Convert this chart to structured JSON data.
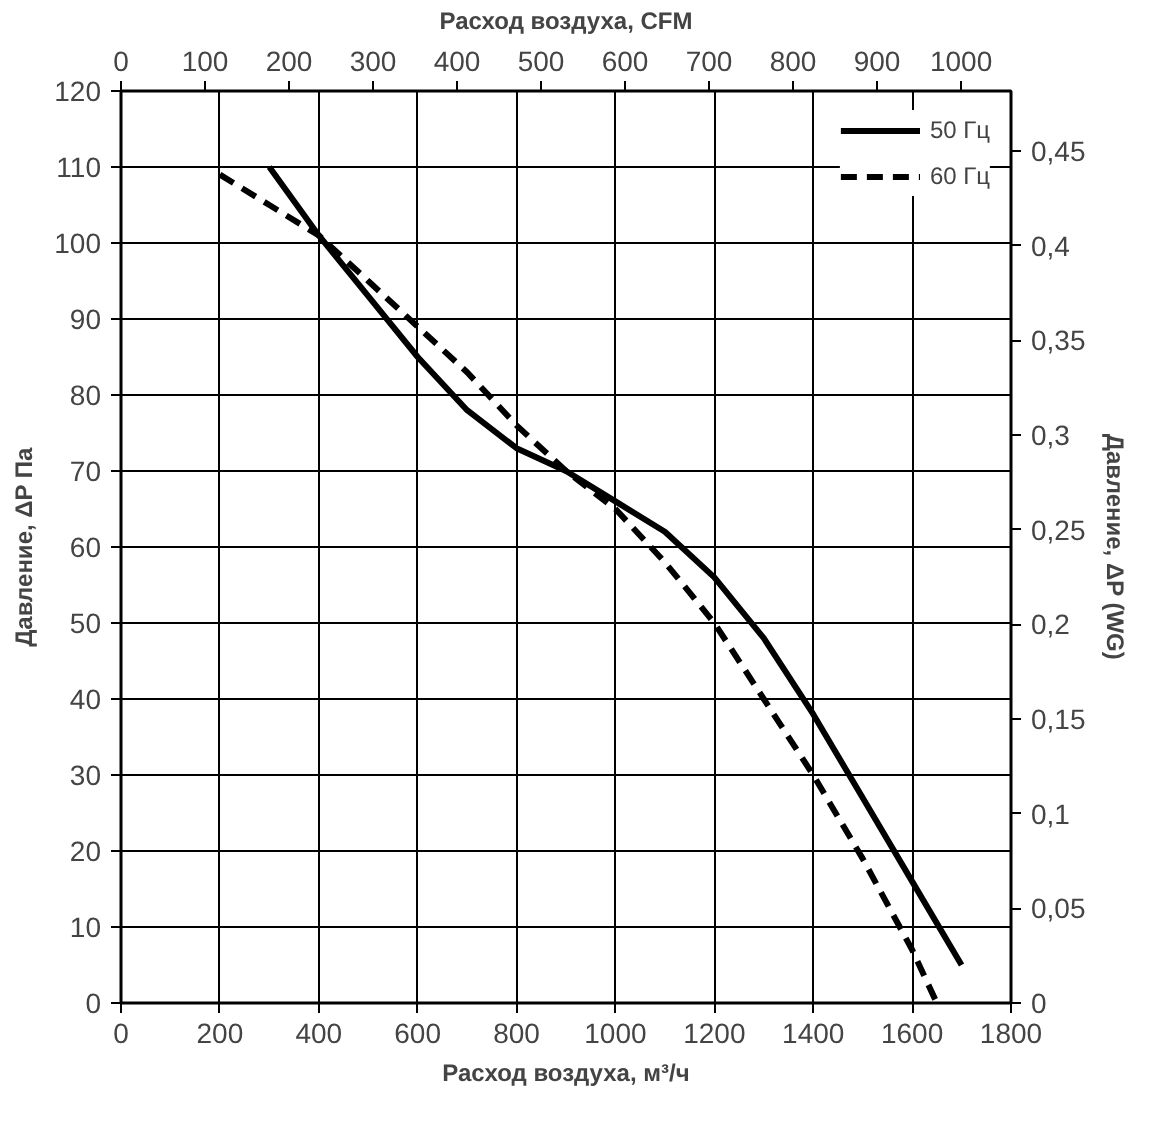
{
  "chart_data": {
    "type": "line",
    "xlabel": "Расход воздуха, м³/ч",
    "ylabel": "Давление, ΔP Па",
    "y2label": "Давление, ΔP (WG)",
    "x2label": "Расход воздуха, CFM",
    "xlim": [
      0,
      1800
    ],
    "xticks": [
      0,
      200,
      400,
      600,
      800,
      1000,
      1200,
      1400,
      1600,
      1800
    ],
    "ylim": [
      0,
      120
    ],
    "yticks": [
      0,
      10,
      20,
      30,
      40,
      50,
      60,
      70,
      80,
      90,
      100,
      110,
      120
    ],
    "y2lim": [
      0,
      0.4817
    ],
    "y2ticks": [
      0,
      {
        "value": 0.05,
        "label": "0,05"
      },
      {
        "value": 0.1,
        "label": "0,1"
      },
      {
        "value": 0.15,
        "label": "0,15"
      },
      {
        "value": 0.2,
        "label": "0,2"
      },
      {
        "value": 0.25,
        "label": "0,25"
      },
      {
        "value": 0.3,
        "label": "0,3"
      },
      {
        "value": 0.35,
        "label": "0,35"
      },
      {
        "value": 0.4,
        "label": "0,4"
      },
      {
        "value": 0.45,
        "label": "0,45"
      }
    ],
    "x2lim": [
      0,
      1059.4
    ],
    "x2ticks": [
      0,
      100,
      200,
      300,
      400,
      500,
      600,
      700,
      800,
      900,
      1000
    ],
    "grid": true,
    "legend": "top right",
    "series": [
      {
        "name": "50 Гц",
        "color": "#000000",
        "line_style": "solid",
        "x": [
          300,
          400,
          500,
          600,
          700,
          800,
          900,
          1000,
          1100,
          1200,
          1300,
          1400,
          1500,
          1600,
          1700
        ],
        "values": [
          110,
          101,
          93,
          85,
          78,
          73,
          70,
          66,
          62,
          56,
          48,
          38,
          27,
          16,
          5
        ]
      },
      {
        "name": "60 Гц",
        "color": "#000000",
        "line_style": "dashed",
        "x": [
          200,
          300,
          400,
          500,
          600,
          700,
          800,
          900,
          1000,
          1100,
          1200,
          1300,
          1400,
          1500,
          1600,
          1650
        ],
        "values": [
          109,
          105,
          101,
          95,
          89,
          83,
          76,
          70,
          65,
          58,
          50,
          40,
          30,
          19,
          7,
          0
        ]
      }
    ]
  }
}
